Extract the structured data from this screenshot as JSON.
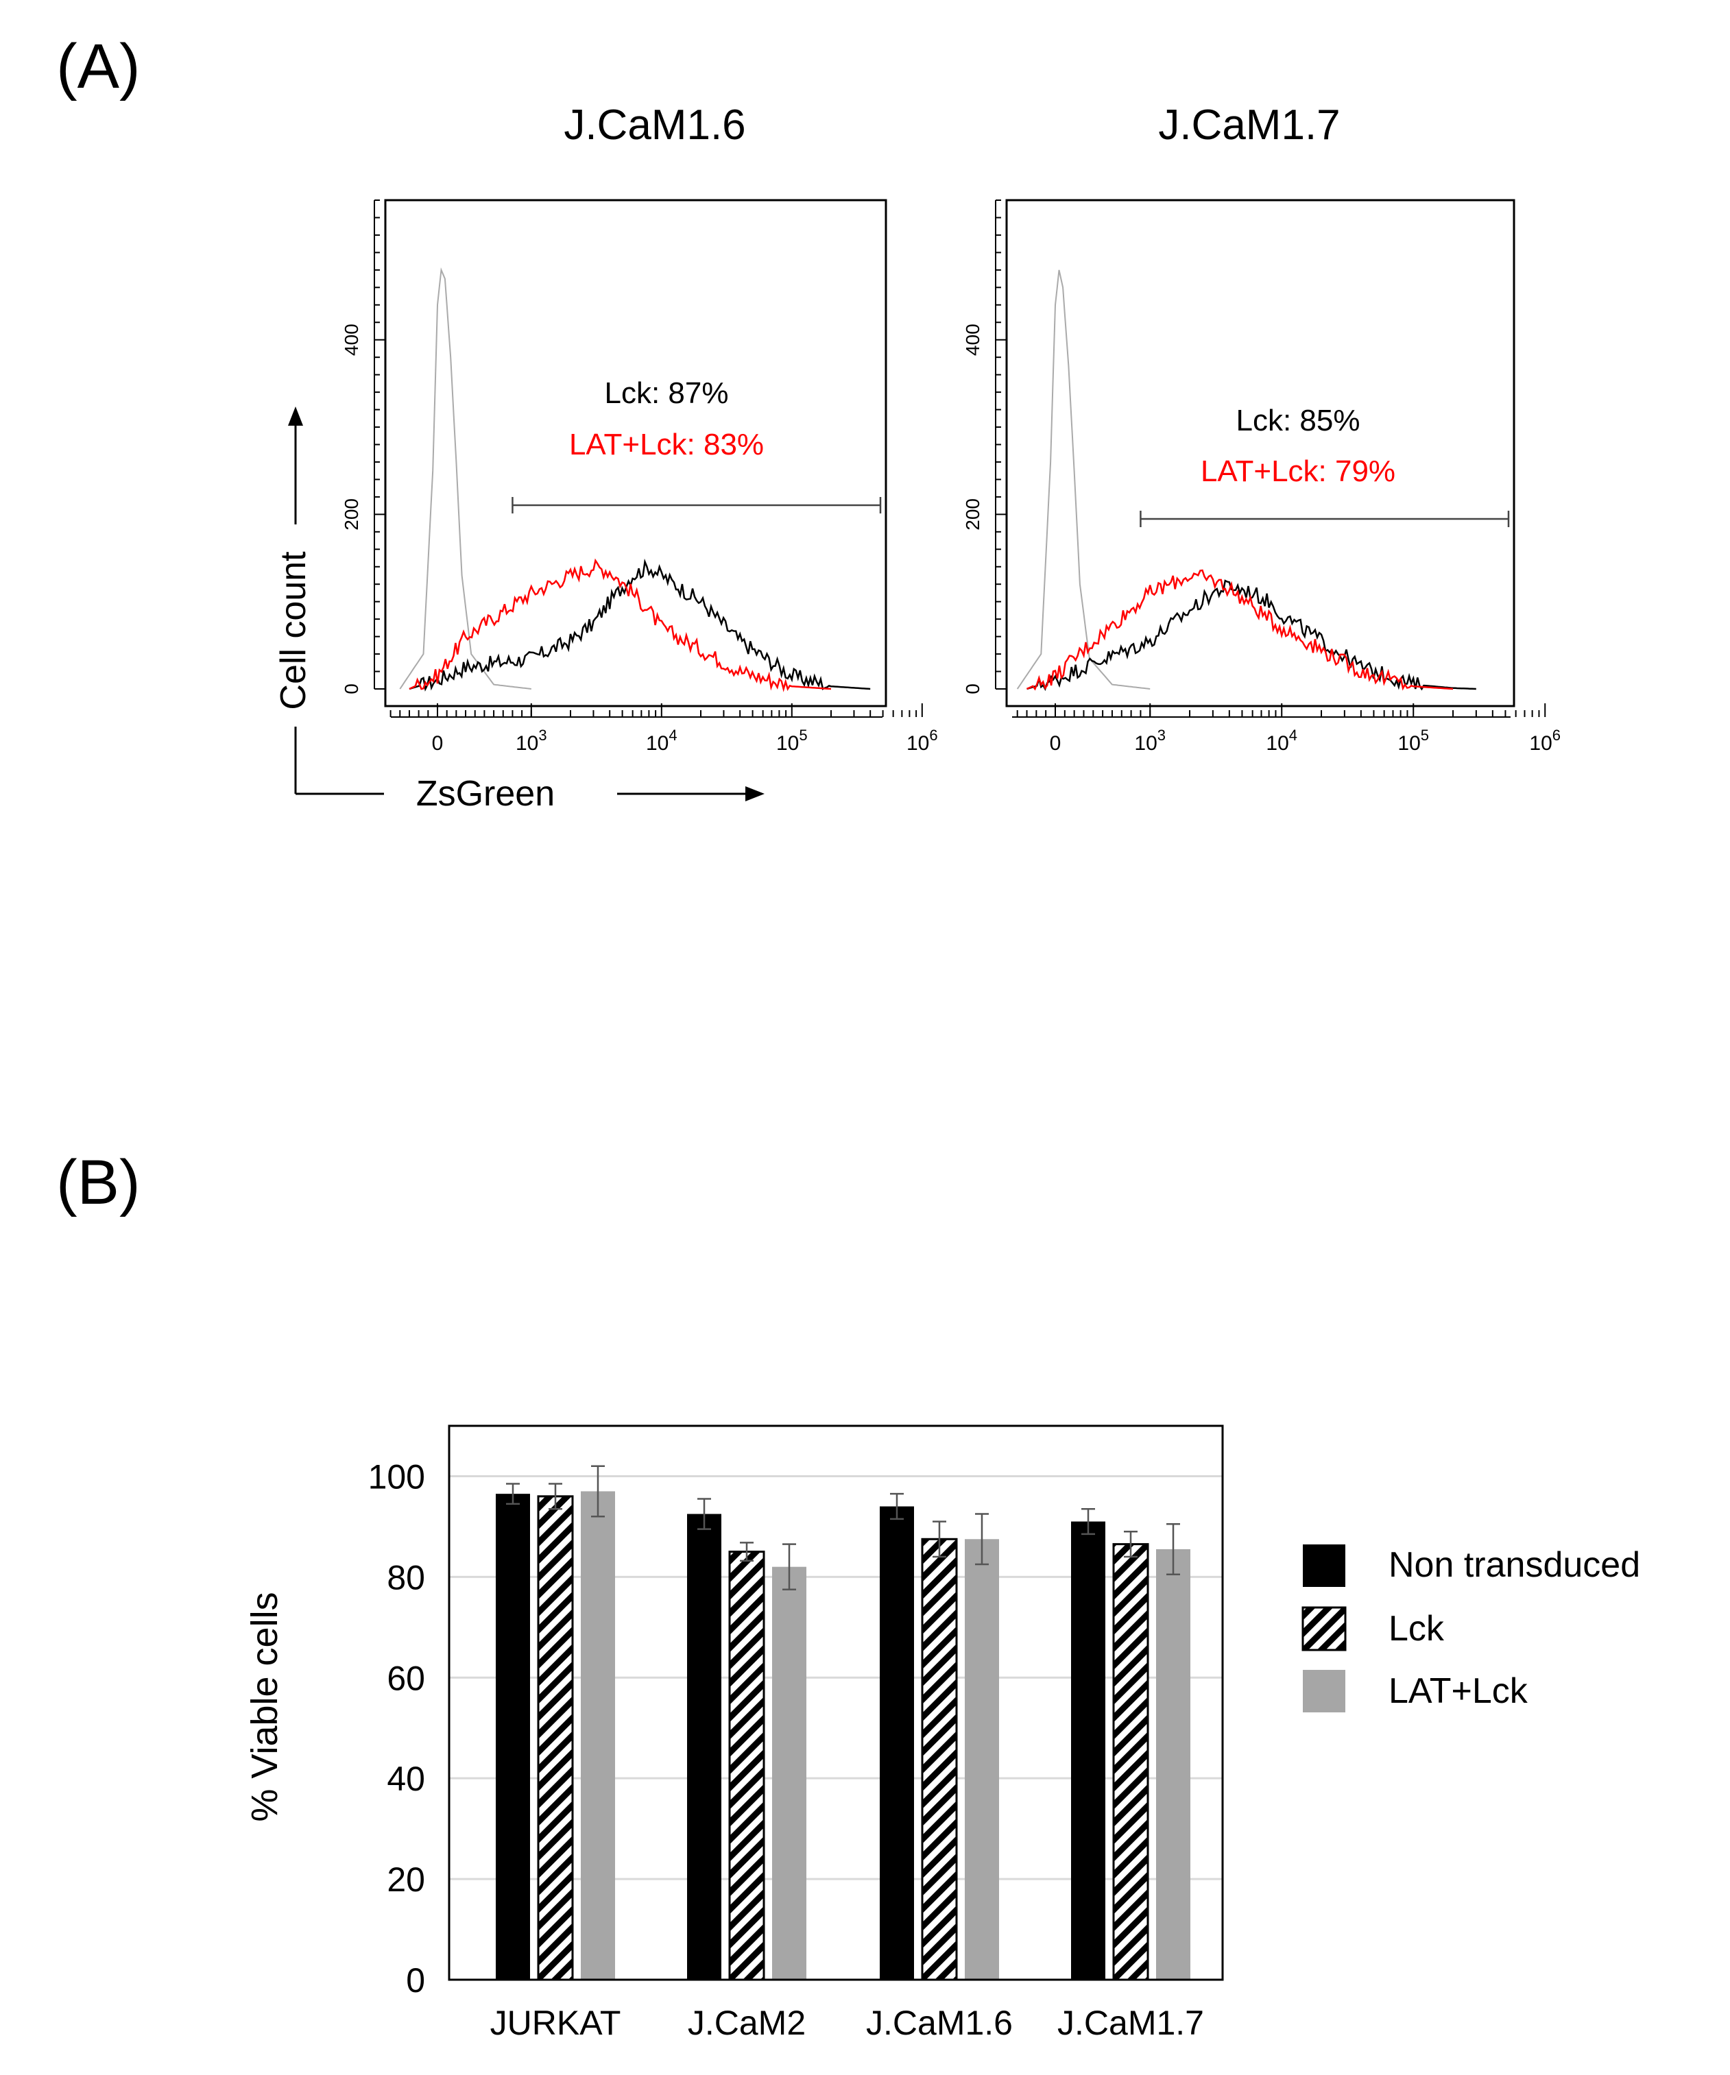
{
  "panel_a": {
    "label": "(A)",
    "axis_label_y": "Cell count",
    "axis_label_x": "ZsGreen",
    "colors": {
      "control": "#aaaaaa",
      "lck": "#000000",
      "lat_lck": "#ff0000"
    }
  },
  "panel_b": {
    "label": "(B)",
    "colors": {
      "nontransduced": "#000000",
      "lck_hatch": "#000000",
      "lat_lck": "#a6a6a6",
      "grid": "#d9d9d9"
    }
  },
  "chart_data": [
    {
      "type": "line",
      "title": "J.CaM1.6",
      "xlabel": "ZsGreen",
      "ylabel": "Cell count",
      "x_scale": "biexponential",
      "x_tick_labels": [
        "0",
        "10^3",
        "10^4",
        "10^5",
        "10^6"
      ],
      "y_ticks": [
        0,
        200,
        400
      ],
      "ylim": [
        0,
        560
      ],
      "gate_range": [
        800,
        700000
      ],
      "annotations": [
        {
          "text": "Lck: 87%",
          "color": "#000000"
        },
        {
          "text": "LAT+Lck: 83%",
          "color": "#ff0000"
        }
      ],
      "series": [
        {
          "color": "#aaaaaa",
          "x": [
            -400,
            -150,
            -50,
            0,
            40,
            80,
            140,
            200,
            260,
            360,
            600,
            1000
          ],
          "values": [
            0,
            40,
            250,
            440,
            480,
            470,
            380,
            260,
            130,
            40,
            5,
            0
          ]
        },
        {
          "color": "#000000",
          "x": [
            -300,
            0,
            300,
            1000,
            2000,
            3000,
            4000,
            6000,
            8000,
            10000,
            20000,
            40000,
            100000,
            200000,
            400000
          ],
          "values": [
            0,
            10,
            25,
            35,
            55,
            75,
            100,
            130,
            140,
            130,
            100,
            55,
            15,
            3,
            0
          ]
        },
        {
          "color": "#ff0000",
          "x": [
            -300,
            0,
            300,
            1000,
            2000,
            3000,
            4000,
            6000,
            8000,
            10000,
            20000,
            40000,
            100000,
            200000
          ],
          "values": [
            0,
            15,
            60,
            110,
            130,
            140,
            135,
            110,
            90,
            70,
            45,
            20,
            3,
            0
          ]
        }
      ]
    },
    {
      "type": "line",
      "title": "J.CaM1.7",
      "xlabel": "ZsGreen",
      "ylabel": "Cell count",
      "x_scale": "biexponential",
      "x_tick_labels": [
        "0",
        "10^3",
        "10^4",
        "10^5",
        "10^6"
      ],
      "y_ticks": [
        0,
        200,
        400
      ],
      "ylim": [
        0,
        560
      ],
      "gate_range": [
        900,
        700000
      ],
      "annotations": [
        {
          "text": "Lck: 85%",
          "color": "#000000"
        },
        {
          "text": "LAT+Lck: 79%",
          "color": "#ff0000"
        }
      ],
      "series": [
        {
          "color": "#aaaaaa",
          "x": [
            -400,
            -150,
            -50,
            0,
            40,
            80,
            140,
            200,
            260,
            360,
            600,
            1000
          ],
          "values": [
            0,
            40,
            260,
            440,
            480,
            460,
            370,
            250,
            120,
            35,
            5,
            0
          ]
        },
        {
          "color": "#000000",
          "x": [
            -300,
            0,
            300,
            1000,
            2000,
            3000,
            4000,
            6000,
            8000,
            10000,
            20000,
            40000,
            100000,
            200000,
            300000
          ],
          "values": [
            0,
            10,
            25,
            55,
            90,
            110,
            118,
            110,
            100,
            85,
            55,
            25,
            5,
            1,
            0
          ]
        },
        {
          "color": "#ff0000",
          "x": [
            -300,
            0,
            300,
            1000,
            2000,
            3000,
            4000,
            6000,
            8000,
            10000,
            20000,
            40000,
            100000,
            200000
          ],
          "values": [
            0,
            15,
            45,
            110,
            130,
            125,
            115,
            95,
            80,
            70,
            45,
            20,
            3,
            0
          ]
        }
      ]
    },
    {
      "type": "bar",
      "title": "",
      "xlabel": "",
      "ylabel": "% Viable cells",
      "ylim": [
        0,
        110
      ],
      "y_ticks": [
        0,
        20,
        40,
        60,
        80,
        100
      ],
      "grid": true,
      "legend_position": "right",
      "categories": [
        "JURKAT",
        "J.CaM2",
        "J.CaM1.6",
        "J.CaM1.7"
      ],
      "series": [
        {
          "name": "Non transduced",
          "values": [
            96.5,
            92.5,
            94,
            91
          ],
          "errors": [
            2.0,
            3.0,
            2.5,
            2.5
          ]
        },
        {
          "name": "Lck",
          "values": [
            96,
            85,
            87.5,
            86.5
          ],
          "errors": [
            2.5,
            1.8,
            3.5,
            2.5
          ]
        },
        {
          "name": "LAT+Lck",
          "values": [
            97,
            82,
            87.5,
            85.5
          ],
          "errors": [
            5.0,
            4.5,
            5.0,
            5.0
          ]
        }
      ]
    }
  ]
}
